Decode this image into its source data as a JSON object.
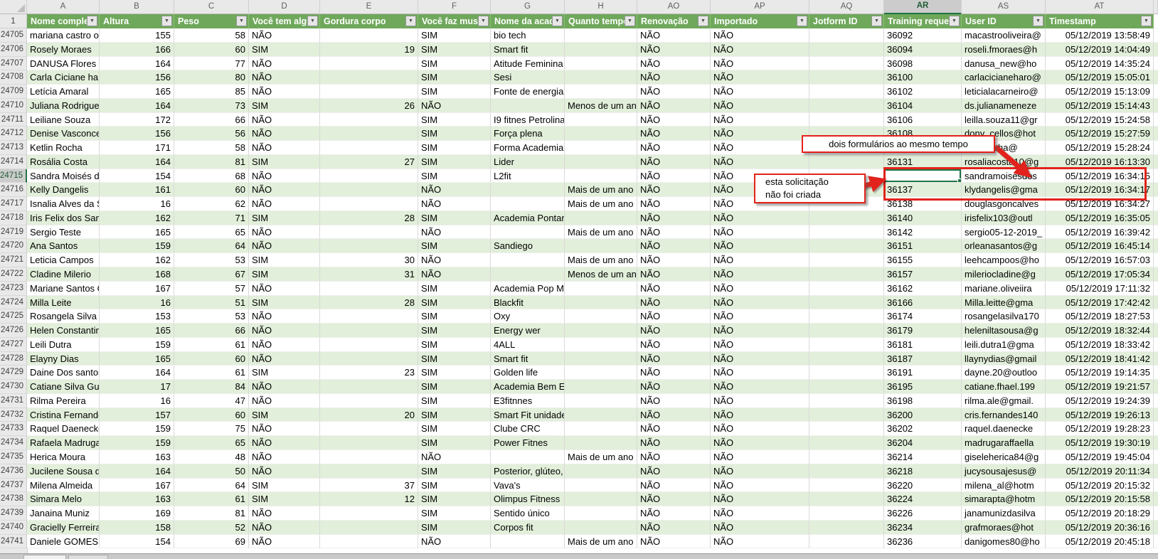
{
  "selection": {
    "row": 24715,
    "column_key": "training",
    "column_letter": "AR"
  },
  "colors": {
    "header_green": "#6FA85B",
    "band_green": "#E2EFDA",
    "selection_green": "#217346",
    "annotation_red": "#E2231A"
  },
  "annotations": {
    "callout1": "dois formulários ao mesmo tempo",
    "callout2_line1": "esta solicitação",
    "callout2_line2": "não foi criada"
  },
  "table": {
    "header_row_number": "1",
    "columns": [
      {
        "key": "name",
        "letter": "A",
        "label": "Nome complet",
        "filter": true
      },
      {
        "key": "altura",
        "letter": "B",
        "label": "Altura",
        "filter": true
      },
      {
        "key": "peso",
        "letter": "C",
        "label": "Peso",
        "filter": true
      },
      {
        "key": "problema",
        "letter": "D",
        "label": "Você tem algu",
        "filter": true
      },
      {
        "key": "gordura",
        "letter": "E",
        "label": "Gordura corpo",
        "filter": true
      },
      {
        "key": "musculacao",
        "letter": "F",
        "label": "Você faz muscu",
        "filter": true
      },
      {
        "key": "academia",
        "letter": "G",
        "label": "Nome da acade",
        "filter": true
      },
      {
        "key": "tempo",
        "letter": "H",
        "label": "Quanto tempo",
        "filter": true
      },
      {
        "key": "renovacao",
        "letter": "AO",
        "label": "Renovação",
        "filter": true
      },
      {
        "key": "importado",
        "letter": "AP",
        "label": "Importado",
        "filter": true
      },
      {
        "key": "jotform",
        "letter": "AQ",
        "label": "Jotform ID",
        "filter": true
      },
      {
        "key": "training",
        "letter": "AR",
        "label": "Training reque",
        "filter": true
      },
      {
        "key": "user",
        "letter": "AS",
        "label": "User ID",
        "filter": true
      },
      {
        "key": "ts",
        "letter": "AT",
        "label": "Timestamp",
        "filter": true
      }
    ],
    "rows": [
      {
        "n": 24705,
        "name": "mariana castro oli",
        "altura": "155",
        "peso": "58",
        "problema": "NÃO",
        "gordura": "",
        "musculacao": "SIM",
        "academia": "bio tech",
        "tempo": "",
        "renovacao": "NÃO",
        "importado": "NÃO",
        "jotform": "",
        "training": "36092",
        "user": "macastrooliveira@",
        "ts": "05/12/2019 13:58:49"
      },
      {
        "n": 24706,
        "name": "Rosely Moraes",
        "altura": "166",
        "peso": "60",
        "problema": "SIM",
        "gordura": "19",
        "musculacao": "SIM",
        "academia": "Smart fit",
        "tempo": "",
        "renovacao": "NÃO",
        "importado": "NÃO",
        "jotform": "",
        "training": "36094",
        "user": "roseli.fmoraes@h",
        "ts": "05/12/2019 14:04:49"
      },
      {
        "n": 24707,
        "name": "DANUSA Flores D",
        "altura": "164",
        "peso": "77",
        "problema": "NÃO",
        "gordura": "",
        "musculacao": "SIM",
        "academia": "Atitude Feminina",
        "tempo": "",
        "renovacao": "NÃO",
        "importado": "NÃO",
        "jotform": "",
        "training": "36098",
        "user": "danusa_new@ho",
        "ts": "05/12/2019 14:35:24"
      },
      {
        "n": 24708,
        "name": "Carla Ciciane harc",
        "altura": "156",
        "peso": "80",
        "problema": "NÃO",
        "gordura": "",
        "musculacao": "SIM",
        "academia": "Sesi",
        "tempo": "",
        "renovacao": "NÃO",
        "importado": "NÃO",
        "jotform": "",
        "training": "36100",
        "user": "carlacicianeharo@",
        "ts": "05/12/2019 15:05:01"
      },
      {
        "n": 24709,
        "name": "Letícia Amaral",
        "altura": "165",
        "peso": "85",
        "problema": "NÃO",
        "gordura": "",
        "musculacao": "SIM",
        "academia": "Fonte de energia",
        "tempo": "",
        "renovacao": "NÃO",
        "importado": "NÃO",
        "jotform": "",
        "training": "36102",
        "user": "leticialacarneiro@",
        "ts": "05/12/2019 15:13:09"
      },
      {
        "n": 24710,
        "name": "Juliana Rodrigues",
        "altura": "164",
        "peso": "73",
        "problema": "SIM",
        "gordura": "26",
        "musculacao": "NÃO",
        "academia": "",
        "tempo": "Menos de um ano",
        "renovacao": "NÃO",
        "importado": "NÃO",
        "jotform": "",
        "training": "36104",
        "user": "ds.julianameneze",
        "ts": "05/12/2019 15:14:43"
      },
      {
        "n": 24711,
        "name": "Leiliane Souza",
        "altura": "172",
        "peso": "66",
        "problema": "NÃO",
        "gordura": "",
        "musculacao": "SIM",
        "academia": "I9 fitnes Petrolina",
        "tempo": "",
        "renovacao": "NÃO",
        "importado": "NÃO",
        "jotform": "",
        "training": "36106",
        "user": "leilla.souza11@gr",
        "ts": "05/12/2019 15:24:58"
      },
      {
        "n": 24712,
        "name": "Denise Vasconcel",
        "altura": "156",
        "peso": "56",
        "problema": "NÃO",
        "gordura": "",
        "musculacao": "SIM",
        "academia": "Força plena",
        "tempo": "",
        "renovacao": "NÃO",
        "importado": "NÃO",
        "jotform": "",
        "training": "36108",
        "user": "dony_cellos@hot",
        "ts": "05/12/2019 15:27:59"
      },
      {
        "n": 24713,
        "name": "Ketlin Rocha",
        "altura": "171",
        "peso": "58",
        "problema": "NÃO",
        "gordura": "",
        "musculacao": "SIM",
        "academia": "Forma Academia",
        "tempo": "",
        "renovacao": "NÃO",
        "importado": "NÃO",
        "jotform": "",
        "training": "",
        "user": "uanarocha@",
        "ts": "05/12/2019 15:28:24"
      },
      {
        "n": 24714,
        "name": "Rosália Costa",
        "altura": "164",
        "peso": "81",
        "problema": "SIM",
        "gordura": "27",
        "musculacao": "SIM",
        "academia": "Lider",
        "tempo": "",
        "renovacao": "NÃO",
        "importado": "NÃO",
        "jotform": "",
        "training": "36131",
        "user": "rosaliacosta10@g",
        "ts": "05/12/2019 16:13:30"
      },
      {
        "n": 24715,
        "name": "Sandra Moisés do",
        "altura": "154",
        "peso": "68",
        "problema": "NÃO",
        "gordura": "",
        "musculacao": "SIM",
        "academia": "L2fit",
        "tempo": "",
        "renovacao": "NÃO",
        "importado": "NÃO",
        "jotform": "",
        "training": "",
        "user": "sandramoisesdos",
        "ts": "05/12/2019 16:34:15"
      },
      {
        "n": 24716,
        "name": "Kelly Dangelis",
        "altura": "161",
        "peso": "60",
        "problema": "NÃO",
        "gordura": "",
        "musculacao": "NÃO",
        "academia": "",
        "tempo": "Mais de um ano",
        "renovacao": "NÃO",
        "importado": "NÃO",
        "jotform": "",
        "training": "36137",
        "user": "klydangelis@gma",
        "ts": "05/12/2019 16:34:17"
      },
      {
        "n": 24717,
        "name": "Isnalia Alves da Si",
        "altura": "16",
        "peso": "62",
        "problema": "NÃO",
        "gordura": "",
        "musculacao": "NÃO",
        "academia": "",
        "tempo": "Mais de um ano",
        "renovacao": "NÃO",
        "importado": "NÃO",
        "jotform": "",
        "training": "36138",
        "user": "douglasgoncalves",
        "ts": "05/12/2019 16:34:27"
      },
      {
        "n": 24718,
        "name": "Iris Felix dos Sant",
        "altura": "162",
        "peso": "71",
        "problema": "SIM",
        "gordura": "28",
        "musculacao": "SIM",
        "academia": "Academia Pontan",
        "tempo": "",
        "renovacao": "NÃO",
        "importado": "NÃO",
        "jotform": "",
        "training": "36140",
        "user": "irisfelix103@outl",
        "ts": "05/12/2019 16:35:05"
      },
      {
        "n": 24719,
        "name": "Sergio Teste",
        "altura": "165",
        "peso": "65",
        "problema": "NÃO",
        "gordura": "",
        "musculacao": "NÃO",
        "academia": "",
        "tempo": "Mais de um ano",
        "renovacao": "NÃO",
        "importado": "NÃO",
        "jotform": "",
        "training": "36142",
        "user": "sergio05-12-2019_",
        "ts": "05/12/2019 16:39:42"
      },
      {
        "n": 24720,
        "name": "Ana Santos",
        "altura": "159",
        "peso": "64",
        "problema": "NÃO",
        "gordura": "",
        "musculacao": "SIM",
        "academia": "Sandiego",
        "tempo": "",
        "renovacao": "NÃO",
        "importado": "NÃO",
        "jotform": "",
        "training": "36151",
        "user": "orleanasantos@g",
        "ts": "05/12/2019 16:45:14"
      },
      {
        "n": 24721,
        "name": "Leticia Campos",
        "altura": "162",
        "peso": "53",
        "problema": "SIM",
        "gordura": "30",
        "musculacao": "NÃO",
        "academia": "",
        "tempo": "Mais de um ano",
        "renovacao": "NÃO",
        "importado": "NÃO",
        "jotform": "",
        "training": "36155",
        "user": "leehcampoos@ho",
        "ts": "05/12/2019 16:57:03"
      },
      {
        "n": 24722,
        "name": "Cladine Milerio",
        "altura": "168",
        "peso": "67",
        "problema": "SIM",
        "gordura": "31",
        "musculacao": "NÃO",
        "academia": "",
        "tempo": "Menos de um ano",
        "renovacao": "NÃO",
        "importado": "NÃO",
        "jotform": "",
        "training": "36157",
        "user": "mileriocladine@g",
        "ts": "05/12/2019 17:05:34"
      },
      {
        "n": 24723,
        "name": "Mariane Santos O",
        "altura": "167",
        "peso": "57",
        "problema": "NÃO",
        "gordura": "",
        "musculacao": "SIM",
        "academia": "Academia Pop Mi",
        "tempo": "",
        "renovacao": "NÃO",
        "importado": "NÃO",
        "jotform": "",
        "training": "36162",
        "user": "mariane.oliveiira",
        "ts": "05/12/2019 17:11:32"
      },
      {
        "n": 24724,
        "name": "Milla Leite",
        "altura": "16",
        "peso": "51",
        "problema": "SIM",
        "gordura": "28",
        "musculacao": "SIM",
        "academia": "Blackfit",
        "tempo": "",
        "renovacao": "NÃO",
        "importado": "NÃO",
        "jotform": "",
        "training": "36166",
        "user": "Milla.leitte@gma",
        "ts": "05/12/2019 17:42:42"
      },
      {
        "n": 24725,
        "name": "Rosangela Silva",
        "altura": "153",
        "peso": "53",
        "problema": "NÃO",
        "gordura": "",
        "musculacao": "SIM",
        "academia": "Oxy",
        "tempo": "",
        "renovacao": "NÃO",
        "importado": "NÃO",
        "jotform": "",
        "training": "36174",
        "user": "rosangelasilva170",
        "ts": "05/12/2019 18:27:53"
      },
      {
        "n": 24726,
        "name": "Helen Constantin",
        "altura": "165",
        "peso": "66",
        "problema": "NÃO",
        "gordura": "",
        "musculacao": "SIM",
        "academia": "Energy wer",
        "tempo": "",
        "renovacao": "NÃO",
        "importado": "NÃO",
        "jotform": "",
        "training": "36179",
        "user": "heleniltasousa@g",
        "ts": "05/12/2019 18:32:44"
      },
      {
        "n": 24727,
        "name": "Leili Dutra",
        "altura": "159",
        "peso": "61",
        "problema": "NÃO",
        "gordura": "",
        "musculacao": "SIM",
        "academia": "4ALL",
        "tempo": "",
        "renovacao": "NÃO",
        "importado": "NÃO",
        "jotform": "",
        "training": "36181",
        "user": "leili.dutra1@gma",
        "ts": "05/12/2019 18:33:42"
      },
      {
        "n": 24728,
        "name": "Elayny Dias",
        "altura": "165",
        "peso": "60",
        "problema": "NÃO",
        "gordura": "",
        "musculacao": "SIM",
        "academia": "Smart fit",
        "tempo": "",
        "renovacao": "NÃO",
        "importado": "NÃO",
        "jotform": "",
        "training": "36187",
        "user": "llaynydias@gmail",
        "ts": "05/12/2019 18:41:42"
      },
      {
        "n": 24729,
        "name": "Daine Dos santos",
        "altura": "164",
        "peso": "61",
        "problema": "SIM",
        "gordura": "23",
        "musculacao": "SIM",
        "academia": "Golden life",
        "tempo": "",
        "renovacao": "NÃO",
        "importado": "NÃO",
        "jotform": "",
        "training": "36191",
        "user": "dayne.20@outloo",
        "ts": "05/12/2019 19:14:35"
      },
      {
        "n": 24730,
        "name": "Catiane Silva Guir",
        "altura": "17",
        "peso": "84",
        "problema": "NÃO",
        "gordura": "",
        "musculacao": "SIM",
        "academia": "Academia Bem Es",
        "tempo": "",
        "renovacao": "NÃO",
        "importado": "NÃO",
        "jotform": "",
        "training": "36195",
        "user": "catiane.fhael.199",
        "ts": "05/12/2019 19:21:57"
      },
      {
        "n": 24731,
        "name": "Rilma Pereira",
        "altura": "16",
        "peso": "47",
        "problema": "NÃO",
        "gordura": "",
        "musculacao": "SIM",
        "academia": "E3fitnnes",
        "tempo": "",
        "renovacao": "NÃO",
        "importado": "NÃO",
        "jotform": "",
        "training": "36198",
        "user": "rilma.ale@gmail.",
        "ts": "05/12/2019 19:24:39"
      },
      {
        "n": 24732,
        "name": "Cristina Fernande",
        "altura": "157",
        "peso": "60",
        "problema": "SIM",
        "gordura": "20",
        "musculacao": "SIM",
        "academia": "Smart Fit unidade",
        "tempo": "",
        "renovacao": "NÃO",
        "importado": "NÃO",
        "jotform": "",
        "training": "36200",
        "user": "cris.fernandes140",
        "ts": "05/12/2019 19:26:13"
      },
      {
        "n": 24733,
        "name": "Raquel Daenecke",
        "altura": "159",
        "peso": "75",
        "problema": "NÃO",
        "gordura": "",
        "musculacao": "SIM",
        "academia": "Clube CRC",
        "tempo": "",
        "renovacao": "NÃO",
        "importado": "NÃO",
        "jotform": "",
        "training": "36202",
        "user": "raquel.daenecke",
        "ts": "05/12/2019 19:28:23"
      },
      {
        "n": 24734,
        "name": "Rafaela Madruga",
        "altura": "159",
        "peso": "65",
        "problema": "NÃO",
        "gordura": "",
        "musculacao": "SIM",
        "academia": "Power Fitnes",
        "tempo": "",
        "renovacao": "NÃO",
        "importado": "NÃO",
        "jotform": "",
        "training": "36204",
        "user": "madrugaraffaella",
        "ts": "05/12/2019 19:30:19"
      },
      {
        "n": 24735,
        "name": "Herica Moura",
        "altura": "163",
        "peso": "48",
        "problema": "NÃO",
        "gordura": "",
        "musculacao": "NÃO",
        "academia": "",
        "tempo": "Mais de um ano",
        "renovacao": "NÃO",
        "importado": "NÃO",
        "jotform": "",
        "training": "36214",
        "user": "giseleherica84@g",
        "ts": "05/12/2019 19:45:04"
      },
      {
        "n": 24736,
        "name": "Jucilene Sousa de",
        "altura": "164",
        "peso": "50",
        "problema": "NÃO",
        "gordura": "",
        "musculacao": "SIM",
        "academia": "Posterior, glúteo,",
        "tempo": "",
        "renovacao": "NÃO",
        "importado": "NÃO",
        "jotform": "",
        "training": "36218",
        "user": "jucysousajesus@",
        "ts": "05/12/2019 20:11:34"
      },
      {
        "n": 24737,
        "name": "Milena Almeida",
        "altura": "167",
        "peso": "64",
        "problema": "SIM",
        "gordura": "37",
        "musculacao": "SIM",
        "academia": "Vava's",
        "tempo": "",
        "renovacao": "NÃO",
        "importado": "NÃO",
        "jotform": "",
        "training": "36220",
        "user": "milena_al@hotm",
        "ts": "05/12/2019 20:15:32"
      },
      {
        "n": 24738,
        "name": "Simara Melo",
        "altura": "163",
        "peso": "61",
        "problema": "SIM",
        "gordura": "12",
        "musculacao": "SIM",
        "academia": "Olimpus Fitness",
        "tempo": "",
        "renovacao": "NÃO",
        "importado": "NÃO",
        "jotform": "",
        "training": "36224",
        "user": "simarapta@hotm",
        "ts": "05/12/2019 20:15:58"
      },
      {
        "n": 24739,
        "name": "Janaina Muniz",
        "altura": "169",
        "peso": "81",
        "problema": "NÃO",
        "gordura": "",
        "musculacao": "SIM",
        "academia": "Sentido único",
        "tempo": "",
        "renovacao": "NÃO",
        "importado": "NÃO",
        "jotform": "",
        "training": "36226",
        "user": "janamunizdasilva",
        "ts": "05/12/2019 20:18:29"
      },
      {
        "n": 24740,
        "name": "Gracielly Ferreira",
        "altura": "158",
        "peso": "52",
        "problema": "NÃO",
        "gordura": "",
        "musculacao": "SIM",
        "academia": "Corpos fit",
        "tempo": "",
        "renovacao": "NÃO",
        "importado": "NÃO",
        "jotform": "",
        "training": "36234",
        "user": "grafmoraes@hot",
        "ts": "05/12/2019 20:36:16"
      },
      {
        "n": 24741,
        "name": "Daniele GOMES",
        "altura": "154",
        "peso": "69",
        "problema": "NÃO",
        "gordura": "",
        "musculacao": "NÃO",
        "academia": "",
        "tempo": "Mais de um ano",
        "renovacao": "NÃO",
        "importado": "NÃO",
        "jotform": "",
        "training": "36236",
        "user": "danigomes80@ho",
        "ts": "05/12/2019 20:45:18"
      }
    ]
  }
}
